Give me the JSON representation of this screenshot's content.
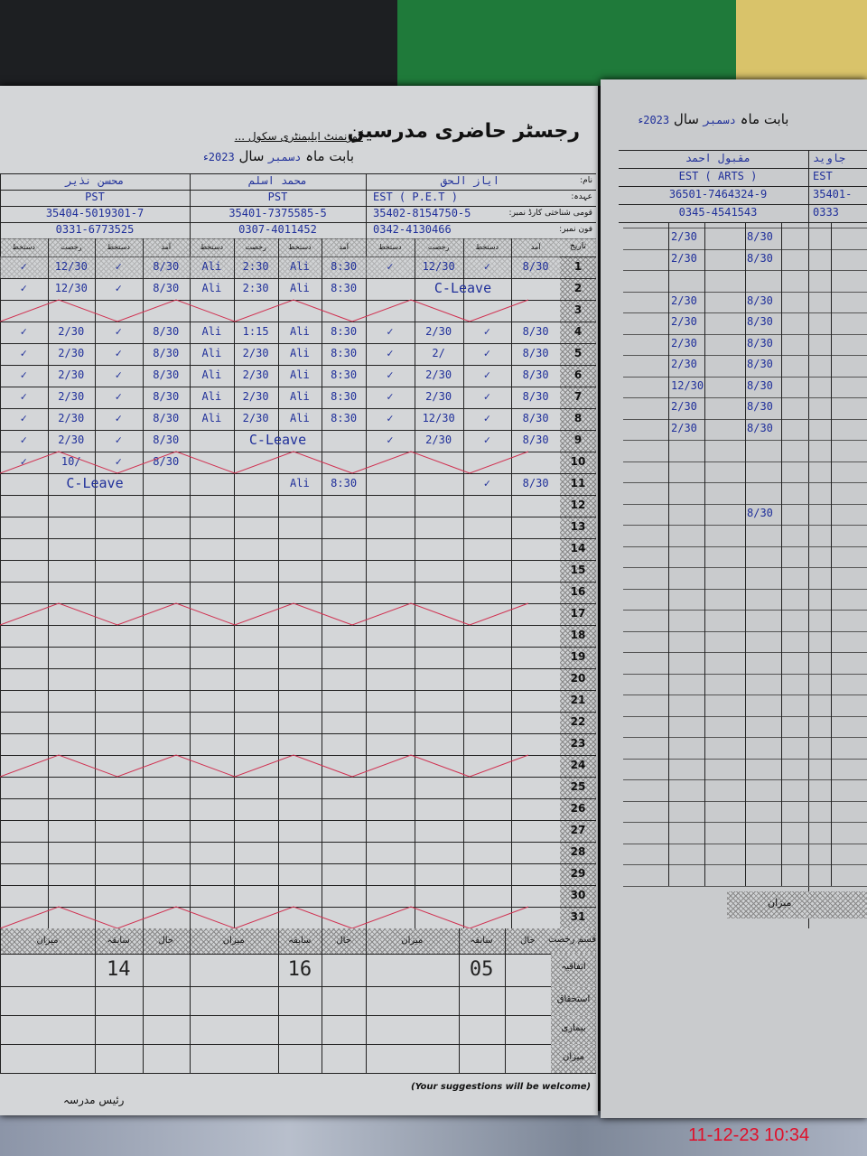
{
  "header": {
    "title": "رجسٹر حاضری مدرسین",
    "school": "گورنمنٹ ایلیمنٹری سکول ...",
    "month_label": "بابت ماہ",
    "month": "دسمبر",
    "year_label": "سال",
    "year": "2023ء"
  },
  "row_labels": {
    "name": "نام:",
    "designation": "عہدہ:",
    "cnic": "قومی شناختی کارڈ نمبر:",
    "phone": "فون نمبر:",
    "date": "تاریخ"
  },
  "column_headers": [
    "آمد",
    "دستخط",
    "رخصت",
    "دستخط"
  ],
  "teachers": [
    {
      "name": "ایاز الحق",
      "designation": "EST ( P.E.T )",
      "cnic": "35402-8154750-5",
      "phone": "0342-4130466",
      "entries": {
        "1": [
          "8/30",
          "✓",
          "12/30",
          "✓"
        ],
        "2": [
          "C-Leave"
        ],
        "4": [
          "8/30",
          "✓",
          "2/30",
          "✓"
        ],
        "5": [
          "8/30",
          "✓",
          "2/",
          "✓"
        ],
        "6": [
          "8/30",
          "✓",
          "2/30",
          "✓"
        ],
        "7": [
          "8/30",
          "✓",
          "2/30",
          "✓"
        ],
        "8": [
          "8/30",
          "✓",
          "12/30",
          "✓"
        ],
        "9": [
          "8/30",
          "✓",
          "2/30",
          "✓"
        ],
        "11": [
          "8/30",
          "✓"
        ]
      }
    },
    {
      "name": "محمد اسلم",
      "designation": "PST",
      "cnic": "35401-7375585-5",
      "phone": "0307-4011452",
      "entries": {
        "1": [
          "8:30",
          "Ali",
          "2:30",
          "Ali"
        ],
        "2": [
          "8:30",
          "Ali",
          "2:30",
          "Ali"
        ],
        "4": [
          "8:30",
          "Ali",
          "1:15",
          "Ali"
        ],
        "5": [
          "8:30",
          "Ali",
          "2/30",
          "Ali"
        ],
        "6": [
          "8:30",
          "Ali",
          "2/30",
          "Ali"
        ],
        "7": [
          "8:30",
          "Ali",
          "2/30",
          "Ali"
        ],
        "8": [
          "8:30",
          "Ali",
          "2/30",
          "Ali"
        ],
        "9": [
          "C-Leave"
        ],
        "11": [
          "8:30",
          "Ali"
        ]
      }
    },
    {
      "name": "محسن نذیر",
      "designation": "PST",
      "cnic": "35404-5019301-7",
      "phone": "0331-6773525",
      "entries": {
        "1": [
          "8/30",
          "✓",
          "12/30",
          "✓"
        ],
        "2": [
          "8/30",
          "✓",
          "12/30",
          "✓"
        ],
        "4": [
          "8/30",
          "✓",
          "2/30",
          "✓"
        ],
        "5": [
          "8/30",
          "✓",
          "2/30",
          "✓"
        ],
        "6": [
          "8/30",
          "✓",
          "2/30",
          "✓"
        ],
        "7": [
          "8/30",
          "✓",
          "2/30",
          "✓"
        ],
        "8": [
          "8/30",
          "✓",
          "2/30",
          "✓"
        ],
        "9": [
          "8/30",
          "✓",
          "2/30",
          "✓"
        ],
        "10": [
          "8/30",
          "✓",
          "10/",
          "✓"
        ],
        "11": [
          "C-Leave"
        ]
      }
    }
  ],
  "dates": [
    "1",
    "2",
    "3",
    "4",
    "5",
    "6",
    "7",
    "8",
    "9",
    "10",
    "11",
    "12",
    "13",
    "14",
    "15",
    "16",
    "17",
    "18",
    "19",
    "20",
    "21",
    "22",
    "23",
    "24",
    "25",
    "26",
    "27",
    "28",
    "29",
    "30",
    "31"
  ],
  "summary": {
    "type_label": "قسم رخصت",
    "cols": [
      "حال",
      "سابقہ",
      "میزان"
    ],
    "rows": [
      "اتفاقیہ",
      "استحقاق",
      "بیماری",
      "میزان"
    ],
    "casual_previous": [
      "05",
      "16",
      "14"
    ]
  },
  "footer": {
    "suggestions": "(Your suggestions will be welcome)",
    "headmaster": "رئیس مدرسہ"
  },
  "right_page": {
    "month_label": "بابت ماہ",
    "month": "دسمبر",
    "year_label": "سال",
    "year": "2023ء",
    "teachers": [
      {
        "name": "مقبول احمد",
        "designation": "EST ( ARTS )",
        "cnic": "36501-7464324-9",
        "phone": "0345-4541543"
      },
      {
        "name": "جاوید",
        "designation": "EST",
        "cnic": "35401-",
        "phone": "0333"
      }
    ],
    "times": [
      "8/30",
      "2/30",
      "12/30"
    ],
    "total_label": "میزان"
  },
  "timestamp": "11-12-23  10:34",
  "colors": {
    "ink": "#1f2f9a",
    "timestamp": "#e0102a",
    "paper": "#d4d6d8"
  }
}
